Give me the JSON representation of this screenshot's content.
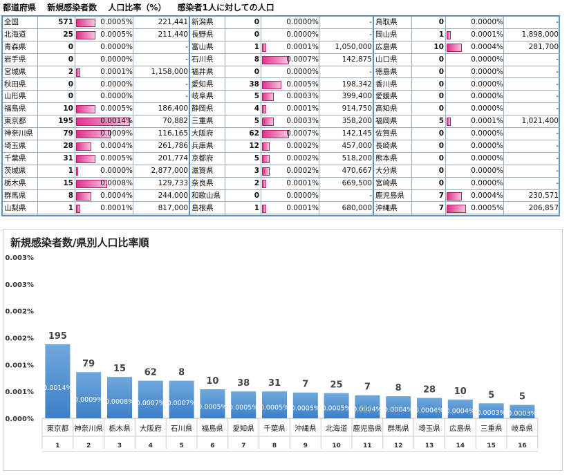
{
  "header": {
    "col1": "都道府県",
    "col2": "新規感染者数",
    "col3": "人口比率（%）",
    "col4": "感染者1人に対しての人口"
  },
  "table": {
    "left": [
      {
        "name": "全国",
        "count": "571",
        "pct": "0.0005%",
        "pop": "221,441",
        "ratio": 0.0005
      },
      {
        "name": "北海道",
        "count": "25",
        "pct": "0.0005%",
        "pop": "211,440",
        "ratio": 0.0005
      },
      {
        "name": "青森県",
        "count": "0",
        "pct": "0.0000%",
        "pop": "-",
        "ratio": 0
      },
      {
        "name": "岩手県",
        "count": "0",
        "pct": "0.0000%",
        "pop": "-",
        "ratio": 0
      },
      {
        "name": "宮城県",
        "count": "2",
        "pct": "0.0001%",
        "pop": "1,158,000",
        "ratio": 0.0001
      },
      {
        "name": "秋田県",
        "count": "0",
        "pct": "0.0000%",
        "pop": "-",
        "ratio": 0
      },
      {
        "name": "山形県",
        "count": "0",
        "pct": "0.0000%",
        "pop": "-",
        "ratio": 0
      },
      {
        "name": "福島県",
        "count": "10",
        "pct": "0.0005%",
        "pop": "186,400",
        "ratio": 0.0005
      },
      {
        "name": "東京都",
        "count": "195",
        "pct": "0.0014%",
        "pop": "70,882",
        "ratio": 0.0014
      },
      {
        "name": "神奈川県",
        "count": "79",
        "pct": "0.0009%",
        "pop": "116,165",
        "ratio": 0.0009
      },
      {
        "name": "埼玉県",
        "count": "28",
        "pct": "0.0004%",
        "pop": "261,786",
        "ratio": 0.0004
      },
      {
        "name": "千葉県",
        "count": "31",
        "pct": "0.0005%",
        "pop": "201,774",
        "ratio": 0.0005
      },
      {
        "name": "茨城県",
        "count": "1",
        "pct": "0.0000%",
        "pop": "2,877,000",
        "ratio": 3e-05
      },
      {
        "name": "栃木県",
        "count": "15",
        "pct": "0.0008%",
        "pop": "129,733",
        "ratio": 0.0008
      },
      {
        "name": "群馬県",
        "count": "8",
        "pct": "0.0004%",
        "pop": "244,000",
        "ratio": 0.0004
      },
      {
        "name": "山梨県",
        "count": "1",
        "pct": "0.0001%",
        "pop": "817,000",
        "ratio": 0.0001
      }
    ],
    "middle": [
      {
        "name": "新潟県",
        "count": "0",
        "pct": "0.0000%",
        "pop": "-",
        "ratio": 0
      },
      {
        "name": "長野県",
        "count": "0",
        "pct": "0.0000%",
        "pop": "-",
        "ratio": 0
      },
      {
        "name": "富山県",
        "count": "1",
        "pct": "0.0001%",
        "pop": "1,050,000",
        "ratio": 0.0001
      },
      {
        "name": "石川県",
        "count": "8",
        "pct": "0.0007%",
        "pop": "142,875",
        "ratio": 0.0007
      },
      {
        "name": "福井県",
        "count": "0",
        "pct": "0.0000%",
        "pop": "-",
        "ratio": 0
      },
      {
        "name": "愛知県",
        "count": "38",
        "pct": "0.0005%",
        "pop": "198,342",
        "ratio": 0.0005
      },
      {
        "name": "岐阜県",
        "count": "5",
        "pct": "0.0003%",
        "pop": "399,400",
        "ratio": 0.0003
      },
      {
        "name": "静岡県",
        "count": "4",
        "pct": "0.0001%",
        "pop": "914,750",
        "ratio": 0.0001
      },
      {
        "name": "三重県",
        "count": "5",
        "pct": "0.0003%",
        "pop": "358,200",
        "ratio": 0.0003
      },
      {
        "name": "大阪府",
        "count": "62",
        "pct": "0.0007%",
        "pop": "142,145",
        "ratio": 0.0007
      },
      {
        "name": "兵庫県",
        "count": "12",
        "pct": "0.0002%",
        "pop": "457,000",
        "ratio": 0.0002
      },
      {
        "name": "京都府",
        "count": "5",
        "pct": "0.0002%",
        "pop": "518,200",
        "ratio": 0.0002
      },
      {
        "name": "滋賀県",
        "count": "3",
        "pct": "0.0002%",
        "pop": "470,667",
        "ratio": 0.0002
      },
      {
        "name": "奈良県",
        "count": "2",
        "pct": "0.0001%",
        "pop": "669,500",
        "ratio": 0.0001
      },
      {
        "name": "和歌山県",
        "count": "0",
        "pct": "0.0000%",
        "pop": "-",
        "ratio": 0
      },
      {
        "name": "島根県",
        "count": "1",
        "pct": "0.0001%",
        "pop": "680,000",
        "ratio": 0.0001
      }
    ],
    "right": [
      {
        "name": "鳥取県",
        "count": "0",
        "pct": "0.0000%",
        "pop": "-",
        "ratio": 0
      },
      {
        "name": "岡山県",
        "count": "1",
        "pct": "0.0001%",
        "pop": "1,898,000",
        "ratio": 0.0001
      },
      {
        "name": "広島県",
        "count": "10",
        "pct": "0.0004%",
        "pop": "281,700",
        "ratio": 0.0004
      },
      {
        "name": "山口県",
        "count": "0",
        "pct": "0.0000%",
        "pop": "-",
        "ratio": 0
      },
      {
        "name": "徳島県",
        "count": "0",
        "pct": "0.0000%",
        "pop": "-",
        "ratio": 0
      },
      {
        "name": "香川県",
        "count": "0",
        "pct": "0.0000%",
        "pop": "-",
        "ratio": 0
      },
      {
        "name": "愛媛県",
        "count": "0",
        "pct": "0.0000%",
        "pop": "-",
        "ratio": 0
      },
      {
        "name": "高知県",
        "count": "0",
        "pct": "0.0000%",
        "pop": "-",
        "ratio": 0
      },
      {
        "name": "福岡県",
        "count": "5",
        "pct": "0.0001%",
        "pop": "1,021,400",
        "ratio": 0.0001
      },
      {
        "name": "佐賀県",
        "count": "0",
        "pct": "0.0000%",
        "pop": "-",
        "ratio": 0
      },
      {
        "name": "長崎県",
        "count": "0",
        "pct": "0.0000%",
        "pop": "-",
        "ratio": 0
      },
      {
        "name": "熊本県",
        "count": "0",
        "pct": "0.0000%",
        "pop": "-",
        "ratio": 0
      },
      {
        "name": "大分県",
        "count": "0",
        "pct": "0.0000%",
        "pop": "-",
        "ratio": 0
      },
      {
        "name": "宮崎県",
        "count": "0",
        "pct": "0.0000%",
        "pop": "-",
        "ratio": 0
      },
      {
        "name": "鹿児島県",
        "count": "7",
        "pct": "0.0004%",
        "pop": "230,571",
        "ratio": 0.0004
      },
      {
        "name": "沖縄県",
        "count": "7",
        "pct": "0.0005%",
        "pop": "206,857",
        "ratio": 0.0005
      }
    ]
  },
  "colors": {
    "bar_top": "#6fa8dc",
    "bar_bottom": "#3d7fc7",
    "table_bar": "#e0328c",
    "border": "#5b8fc7"
  },
  "chart_data": {
    "type": "bar",
    "title": "新規感染者数/県別人口比率順",
    "categories": [
      "東京都",
      "神奈川県",
      "栃木県",
      "大阪府",
      "石川県",
      "福島県",
      "愛知県",
      "千葉県",
      "沖縄県",
      "北海道",
      "鹿児島県",
      "群馬県",
      "埼玉県",
      "広島県",
      "三重県",
      "岐阜県"
    ],
    "ranks": [
      "1",
      "2",
      "3",
      "4",
      "5",
      "6",
      "7",
      "8",
      "9",
      "10",
      "11",
      "12",
      "13",
      "14",
      "15",
      "16"
    ],
    "values": [
      0.00138,
      0.00086,
      0.00077,
      0.0007,
      0.0007,
      0.00054,
      0.0005,
      0.0005,
      0.00048,
      0.00047,
      0.00043,
      0.00041,
      0.00038,
      0.00035,
      0.00028,
      0.00025
    ],
    "value_labels": [
      "0.0014%",
      "0.0009%",
      "0.0008%",
      "0.0007%",
      "0.0007%",
      "0.0005%",
      "0.0005%",
      "0.0005%",
      "0.0005%",
      "0.0005%",
      "0.0004%",
      "0.0004%",
      "0.0004%",
      "0.0004%",
      "0.0003%",
      "0.0003%"
    ],
    "counts": [
      "195",
      "79",
      "15",
      "62",
      "8",
      "10",
      "38",
      "31",
      "7",
      "25",
      "7",
      "8",
      "28",
      "10",
      "5",
      "5"
    ],
    "yticks": [
      "0.000%",
      "0.001%",
      "0.001%",
      "0.002%",
      "0.002%",
      "0.003%",
      "0.003%"
    ],
    "ylim": [
      0,
      0.003
    ],
    "grid": false
  }
}
